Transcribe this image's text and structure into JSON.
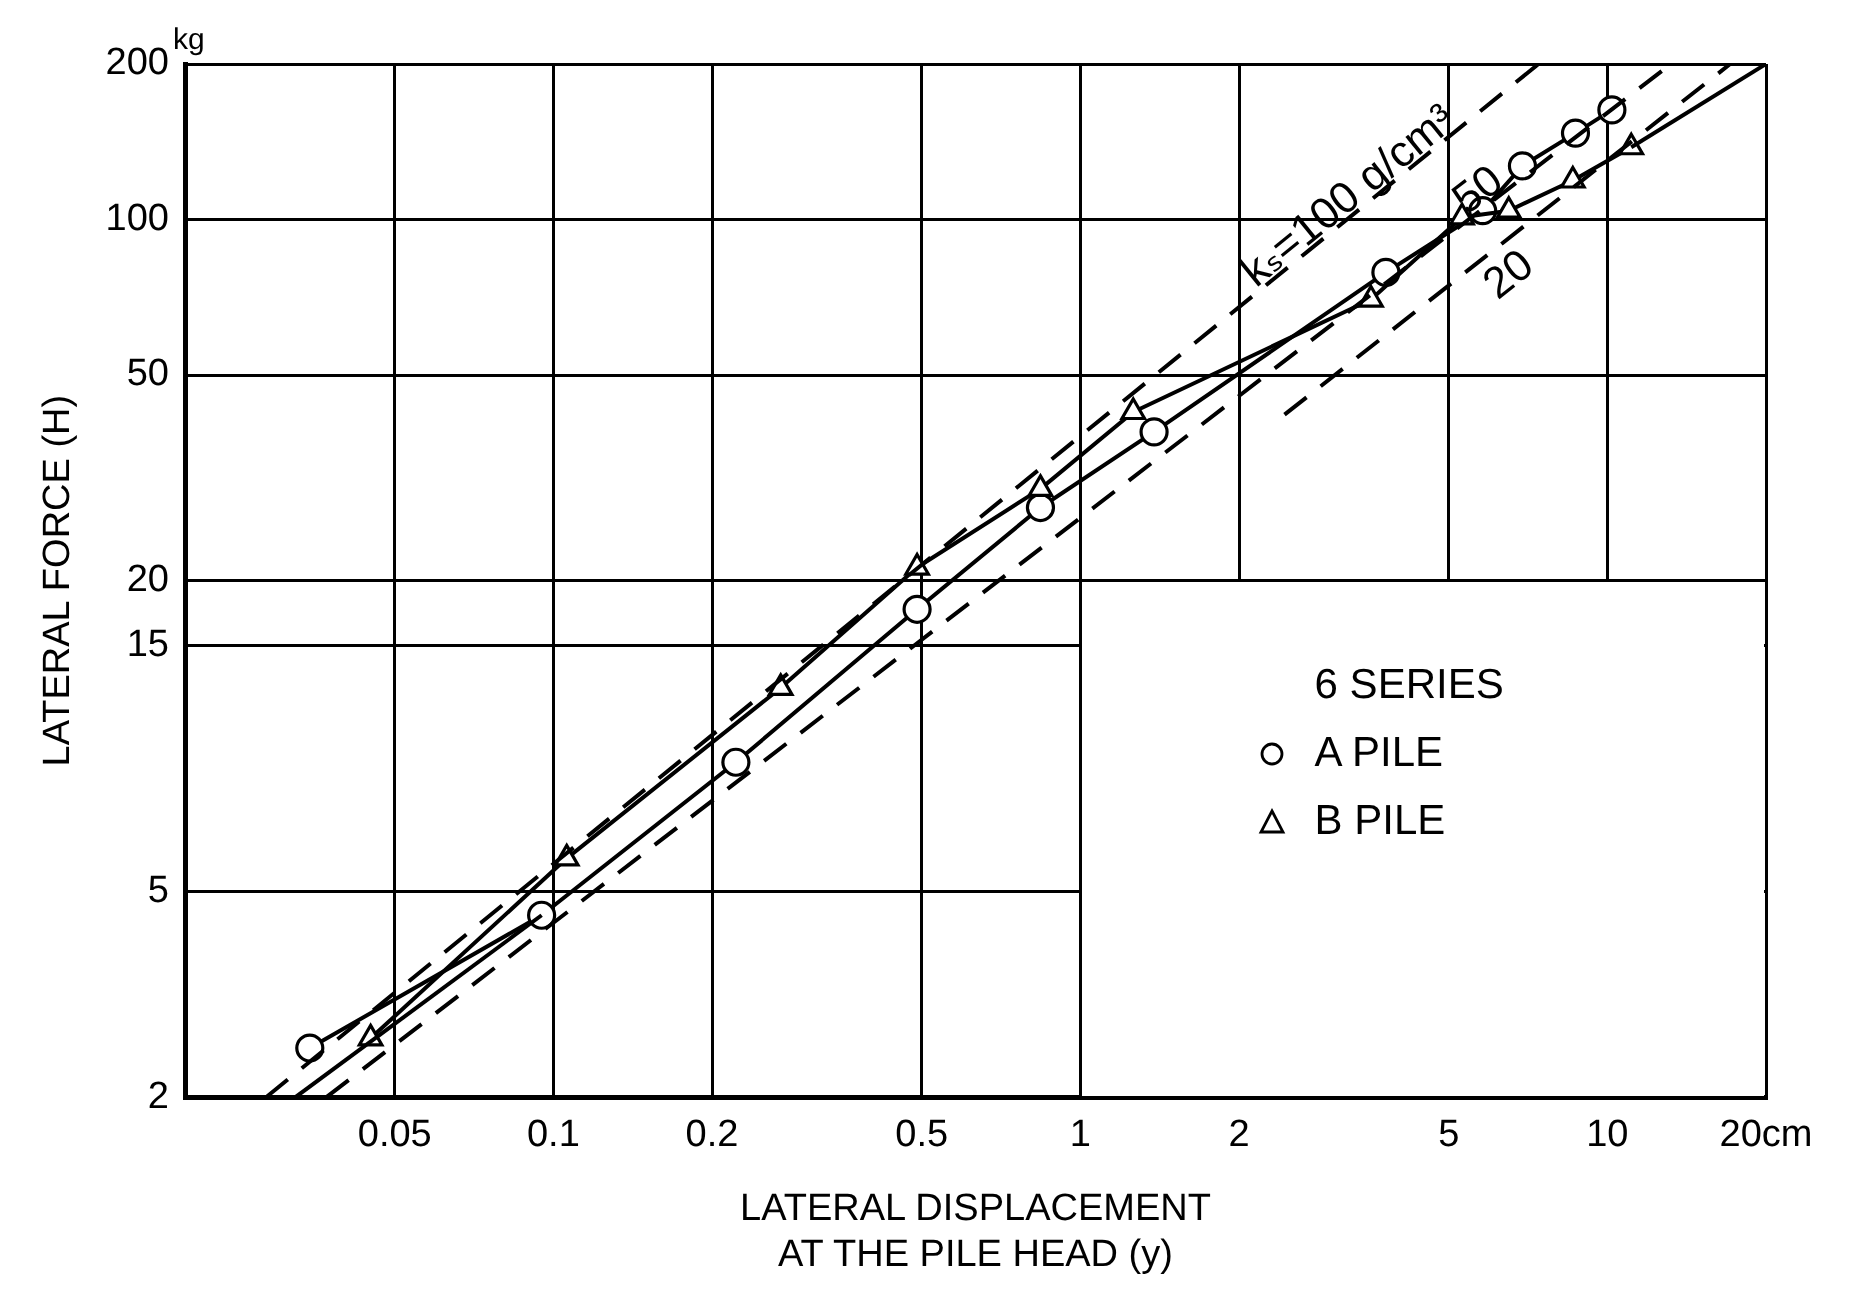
{
  "chart_data": {
    "type": "line",
    "xlabel": "LATERAL DISPLACEMENT\nAT THE PILE HEAD (y)",
    "ylabel": "LATERAL FORCE (H)",
    "legend_title": "6 SERIES",
    "log": "xy",
    "grid": true,
    "legend": "right",
    "xlim": [
      0.02,
      20
    ],
    "ylim": [
      2,
      200
    ],
    "xticks": [
      0.05,
      0.1,
      0.2,
      0.5,
      1,
      2,
      5,
      10,
      {
        "value": 20,
        "label": "20cm"
      }
    ],
    "yticks": [
      2,
      5,
      15,
      20,
      50,
      100,
      {
        "value": 200,
        "label": "200$^{kg}$"
      }
    ],
    "series": [
      {
        "name": "A PILE",
        "color": "#000000",
        "marker": "circle",
        "line_style": "solid",
        "x": [
          0.0345,
          0.095,
          0.222,
          0.49,
          0.84,
          1.38,
          3.8,
          5.8,
          6.9,
          8.7,
          10.2
        ],
        "values": [
          2.49,
          4.5,
          8.9,
          17.6,
          27.7,
          38.8,
          79,
          104,
          127,
          147,
          163
        ]
      },
      {
        "name": "B PILE",
        "color": "#000000",
        "marker": "triangle",
        "line_style": "solid",
        "x": [
          0.045,
          0.106,
          0.27,
          0.49,
          0.84,
          1.26,
          3.56,
          5.3,
          6.5,
          8.6,
          11.1
        ],
        "values": [
          2.6,
          5.8,
          12.4,
          21.2,
          30.1,
          42.4,
          70,
          101,
          104,
          119,
          138
        ]
      },
      {
        "color": "#000000",
        "marker": "none",
        "line_style": "solid",
        "x": [
          0.0324,
          0.095
        ],
        "values": [
          2,
          4.5
        ]
      },
      {
        "color": "#000000",
        "marker": "none",
        "line_style": "solid",
        "x": [
          11.1,
          20
        ],
        "values": [
          138,
          200
        ]
      },
      {
        "name": "kₛ=100 g/cm³",
        "color": "#000000",
        "marker": "none",
        "line_style": "dashed",
        "x": [
          0.0285,
          7.4
        ],
        "values": [
          2,
          200
        ]
      },
      {
        "name": "50",
        "color": "#000000",
        "marker": "none",
        "line_style": "dashed",
        "x": [
          0.0371,
          13.2
        ],
        "values": [
          2,
          200
        ]
      },
      {
        "name": "20",
        "color": "#000000",
        "marker": "none",
        "line_style": "dashed",
        "x": [
          2.44,
          17.1
        ],
        "values": [
          41.9,
          200
        ]
      }
    ]
  }
}
